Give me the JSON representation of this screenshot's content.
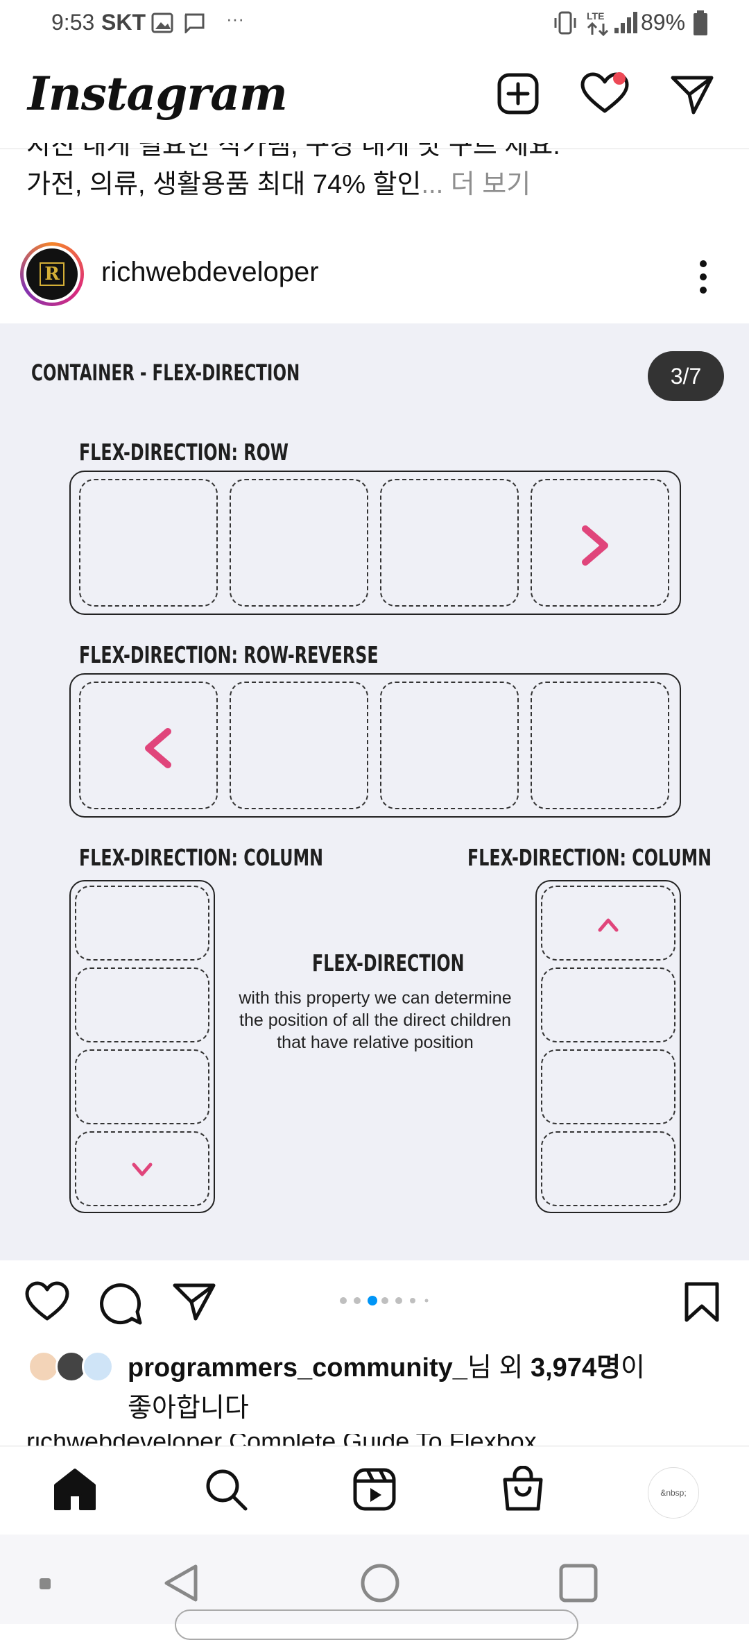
{
  "status_bar": {
    "time": "9:53",
    "carrier": "SKT",
    "battery": "89%"
  },
  "header": {
    "logo": "Instagram",
    "heart_has_notification": true
  },
  "caption_top": {
    "cut_line": "지친 내게 필요한 작가템, 구경 내게 맛 구르 제요.",
    "line2_text": "가전, 의류, 생활용품 최대 74% 할인",
    "more": "... 더 보기"
  },
  "post": {
    "username": "richwebdeveloper",
    "avatar_letter": "R",
    "slide": {
      "title": "CONTAINER - FLEX-DIRECTION",
      "counter": "3/7",
      "row_label": "FLEX-DIRECTION: ROW",
      "row_reverse_label": "FLEX-DIRECTION: ROW-REVERSE",
      "column_label_left": "FLEX-DIRECTION: COLUMN",
      "column_label_right": "FLEX-DIRECTION: COLUMN",
      "center_title": "FLEX-DIRECTION",
      "center_desc": "with this property we can determine the position of all the direct children that have relative position"
    },
    "carousel": {
      "count": 7,
      "active_index": 2
    },
    "likes": {
      "user": "programmers_community_",
      "suffix1": "님 외 ",
      "count": "3,974명",
      "suffix2": "이",
      "line2": "좋아합니다"
    },
    "caption_bottom": "richwebdeveloper Complete Guide To Flexbox"
  },
  "bottom_nav": {
    "items": [
      "home",
      "search",
      "reels",
      "shop",
      "profile"
    ],
    "profile_placeholder": "&nbsp;"
  },
  "colors": {
    "arrow_start": "#7fd0ea",
    "arrow_end": "#e0457b",
    "notify": "#ed4956",
    "active_dot": "#0095f6"
  }
}
